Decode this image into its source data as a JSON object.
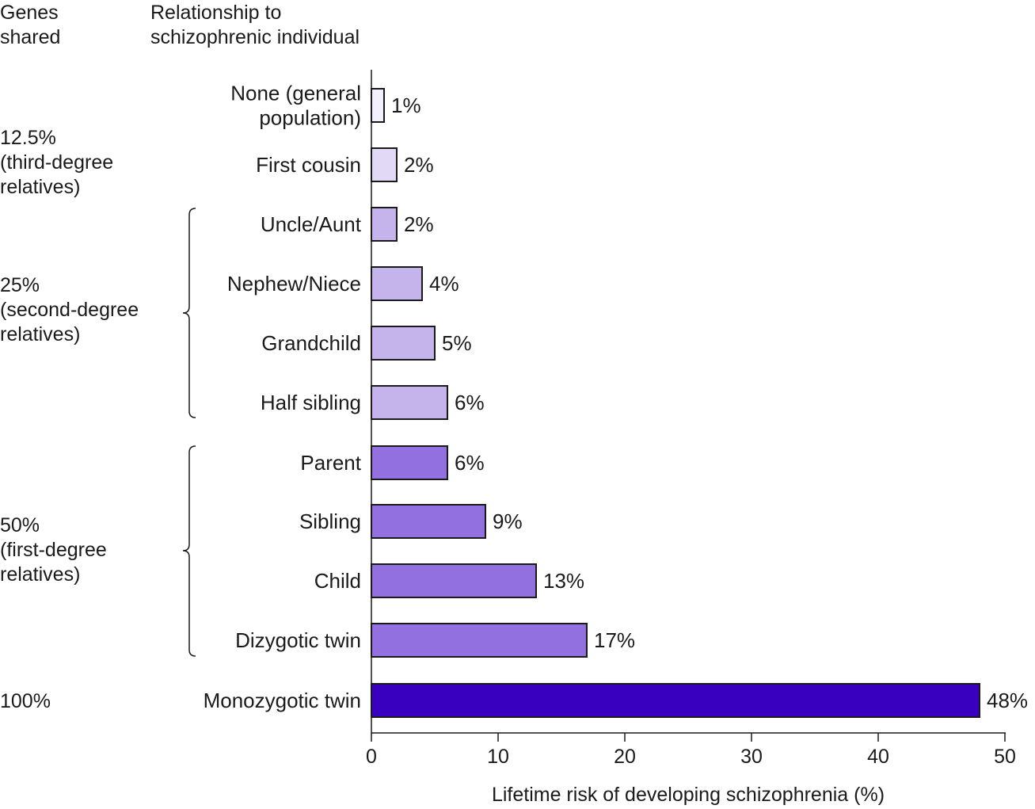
{
  "headers": {
    "genes_shared": [
      "Genes",
      "shared"
    ],
    "relationship": [
      "Relationship to",
      "schizophrenic individual"
    ]
  },
  "groups": [
    {
      "lines": [
        "12.5%",
        "(third-degree",
        "relatives)"
      ]
    },
    {
      "lines": [
        "25%",
        "(second-degree",
        "relatives)"
      ]
    },
    {
      "lines": [
        "50%",
        "(first-degree",
        "relatives)"
      ]
    },
    {
      "lines": [
        "100%"
      ]
    }
  ],
  "chart_data": {
    "type": "bar",
    "orientation": "horizontal",
    "categories": [
      "None (general population)",
      "First cousin",
      "Uncle/Aunt",
      "Nephew/Niece",
      "Grandchild",
      "Half sibling",
      "Parent",
      "Sibling",
      "Child",
      "Dizygotic twin",
      "Monozygotic twin"
    ],
    "category_lines": [
      [
        "None (general",
        "population)"
      ],
      [
        "First cousin"
      ],
      [
        "Uncle/Aunt"
      ],
      [
        "Nephew/Niece"
      ],
      [
        "Grandchild"
      ],
      [
        "Half sibling"
      ],
      [
        "Parent"
      ],
      [
        "Sibling"
      ],
      [
        "Child"
      ],
      [
        "Dizygotic twin"
      ],
      [
        "Monozygotic twin"
      ]
    ],
    "values": [
      1,
      2,
      2,
      4,
      5,
      6,
      6,
      9,
      13,
      17,
      48
    ],
    "data_labels": [
      "1%",
      "2%",
      "2%",
      "4%",
      "5%",
      "6%",
      "6%",
      "9%",
      "13%",
      "17%",
      "48%"
    ],
    "bar_colors": [
      "#f3f0fb",
      "#e2d9f6",
      "#c5b3ec",
      "#c5b3ec",
      "#c5b3ec",
      "#c5b3ec",
      "#9370e0",
      "#9370e0",
      "#9370e0",
      "#9370e0",
      "#3a00c0"
    ],
    "xlabel": "Lifetime risk of developing schizophrenia (%)",
    "xlim": [
      0,
      50
    ],
    "xticks": [
      "0",
      "10",
      "20",
      "30",
      "40",
      "50"
    ],
    "grid": false
  }
}
